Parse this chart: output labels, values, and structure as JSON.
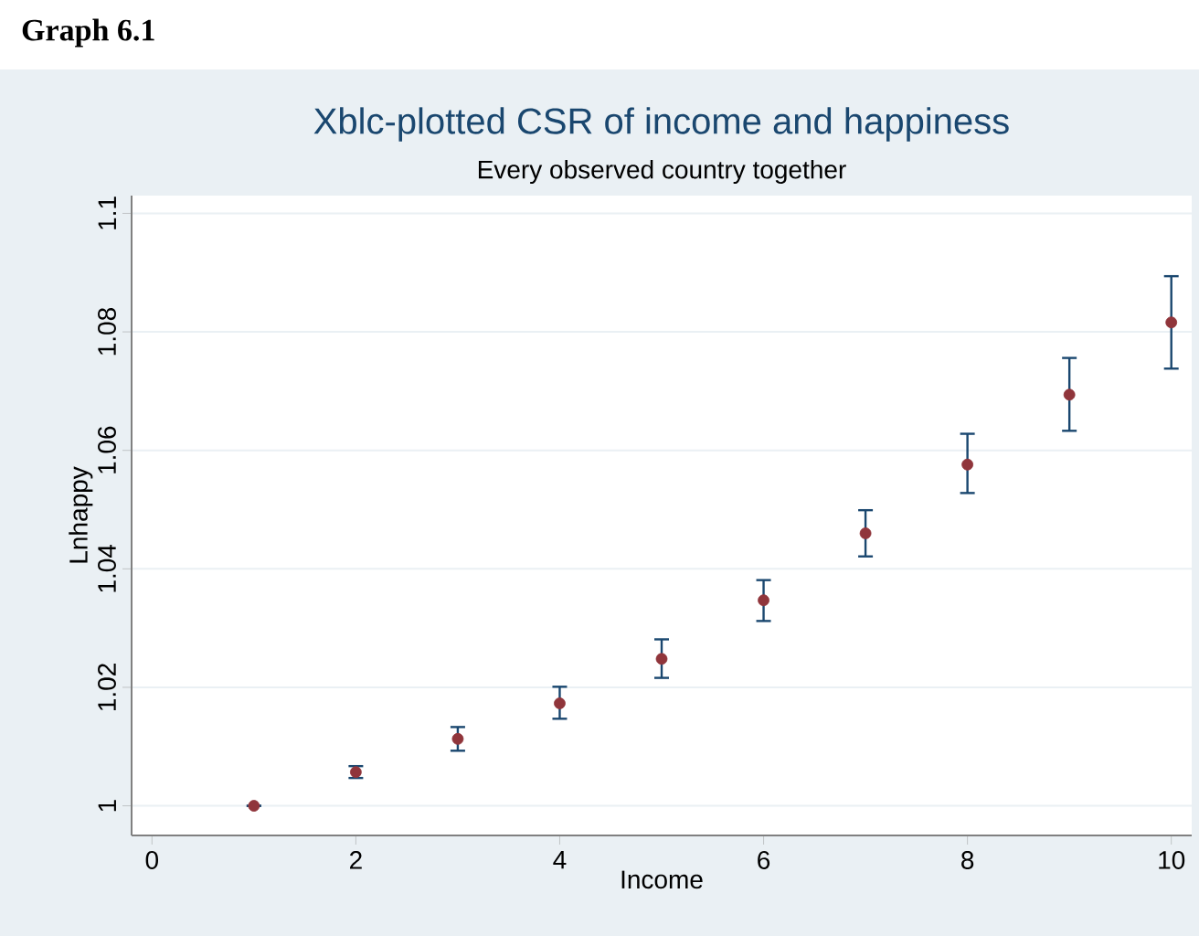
{
  "chart_data": {
    "type": "scatter",
    "title": "Xblc-plotted CSR of income and happiness",
    "subtitle": "Every observed country together",
    "xlabel": "Income",
    "ylabel": "Lnhappy",
    "annotations": [
      "Graph 6.1"
    ],
    "x": [
      1,
      2,
      3,
      4,
      5,
      6,
      7,
      8,
      9,
      10
    ],
    "values": [
      1.0,
      1.0057,
      1.0113,
      1.0173,
      1.0248,
      1.0347,
      1.046,
      1.0576,
      1.0694,
      1.0816
    ],
    "errors": [
      null,
      [
        1.0047,
        1.0067
      ],
      [
        1.0093,
        1.0133
      ],
      [
        1.0147,
        1.0201
      ],
      [
        1.0216,
        1.0281
      ],
      [
        1.0312,
        1.0381
      ],
      [
        1.0421,
        1.0499
      ],
      [
        1.0528,
        1.0628
      ],
      [
        1.0633,
        1.0756
      ],
      [
        1.0738,
        1.0894
      ]
    ],
    "color": "#90353b",
    "grid": "y",
    "xlim": [
      -0.2,
      10.2
    ],
    "ylim": [
      0.995,
      1.103
    ],
    "xticks": [
      0,
      2,
      4,
      6,
      8,
      10
    ],
    "yticks": [
      1,
      1.02,
      1.04,
      1.06,
      1.08,
      1.1
    ]
  }
}
